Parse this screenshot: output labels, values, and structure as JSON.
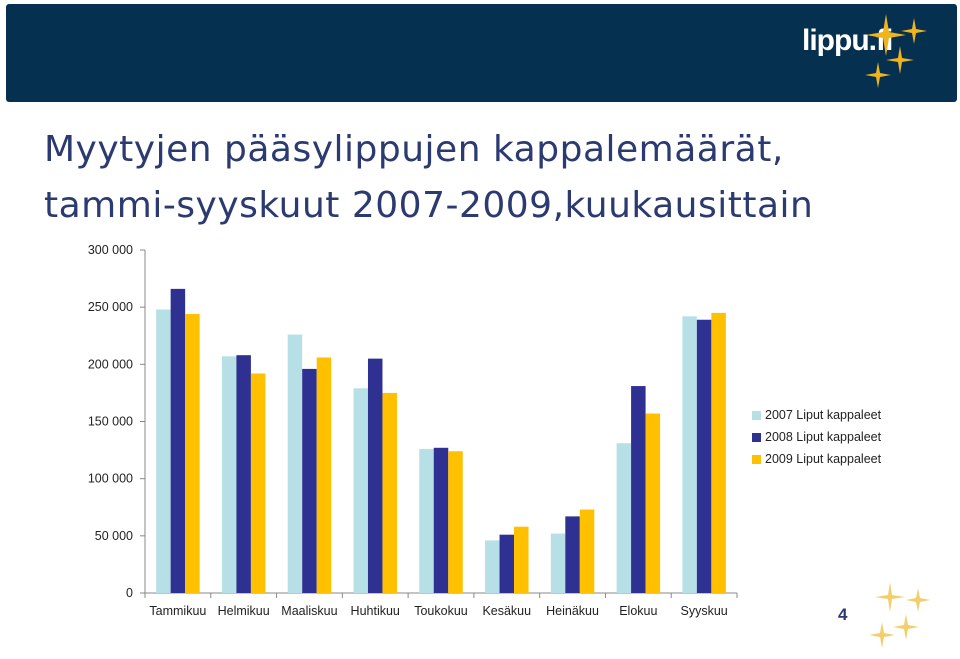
{
  "header": {
    "logo_text": "lippu.fi"
  },
  "title": {
    "line1": "Myytyjen pääsylippujen kappalemäärät,",
    "line2": "tammi-syyskuut 2007-2009,kuukausittain"
  },
  "page_number": "4",
  "colors": {
    "header_band": "#06304f",
    "title": "#2b3a70",
    "logo_star": "#f1b51c"
  },
  "chart_data": {
    "type": "bar",
    "categories": [
      "Tammikuu",
      "Helmikuu",
      "Maaliskuu",
      "Huhtikuu",
      "Toukokuu",
      "Kesäkuu",
      "Heinäkuu",
      "Elokuu",
      "Syyskuu"
    ],
    "series": [
      {
        "name": "2007 Liput kappaleet",
        "color": "#b7e0e6",
        "values": [
          248000,
          207000,
          226000,
          179000,
          126000,
          46000,
          52000,
          131000,
          242000
        ]
      },
      {
        "name": "2008 Liput kappaleet",
        "color": "#2e3192",
        "values": [
          266000,
          208000,
          196000,
          205000,
          127000,
          51000,
          67000,
          181000,
          239000
        ]
      },
      {
        "name": "2009 Liput kappaleet",
        "color": "#ffc000",
        "values": [
          244000,
          192000,
          206000,
          175000,
          124000,
          58000,
          73000,
          157000,
          245000
        ]
      }
    ],
    "yticks": [
      "0",
      "50 000",
      "100 000",
      "150 000",
      "200 000",
      "250 000",
      "300 000"
    ],
    "ylim": [
      0,
      300000
    ],
    "legend_position": "right",
    "grid": false
  }
}
